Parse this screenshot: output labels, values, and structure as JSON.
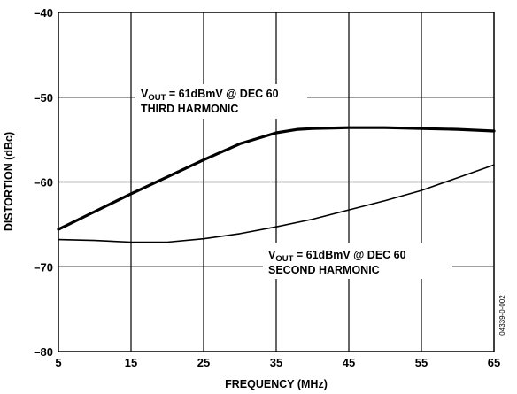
{
  "chart_data": {
    "type": "line",
    "xlabel": "FREQUENCY (MHz)",
    "ylabel": "DISTORTION (dBc)",
    "xlim": [
      5,
      65
    ],
    "ylim": [
      -80,
      -40
    ],
    "xticks": [
      5,
      15,
      25,
      35,
      45,
      55,
      65
    ],
    "yticks": [
      -40,
      -50,
      -60,
      -70,
      -80
    ],
    "xtick_labels": [
      "5",
      "15",
      "25",
      "35",
      "45",
      "55",
      "65"
    ],
    "ytick_labels": [
      "–40",
      "–50",
      "–60",
      "–70",
      "–80"
    ],
    "grid": true,
    "figure_id": "04339-0-002",
    "series": [
      {
        "annotation": {
          "prefix": "V",
          "subscript": "OUT",
          "rest": " = 61dBmV @ DEC 60",
          "line2": "THIRD HARMONIC"
        },
        "x": [
          5,
          10,
          15,
          20,
          25,
          30,
          35,
          38,
          40,
          45,
          50,
          55,
          60,
          65
        ],
        "y": [
          -65.6,
          -63.5,
          -61.4,
          -59.4,
          -57.4,
          -55.5,
          -54.2,
          -53.8,
          -53.7,
          -53.6,
          -53.6,
          -53.7,
          -53.8,
          -54.0
        ]
      },
      {
        "annotation": {
          "prefix": "V",
          "subscript": "OUT",
          "rest": " = 61dBmV @ DEC 60",
          "line2": "SECOND HARMONIC"
        },
        "x": [
          5,
          10,
          15,
          20,
          25,
          30,
          35,
          40,
          45,
          50,
          55,
          60,
          65
        ],
        "y": [
          -66.8,
          -66.9,
          -67.1,
          -67.1,
          -66.7,
          -66.1,
          -65.3,
          -64.4,
          -63.3,
          -62.2,
          -61.0,
          -59.5,
          -58.0
        ]
      }
    ]
  }
}
